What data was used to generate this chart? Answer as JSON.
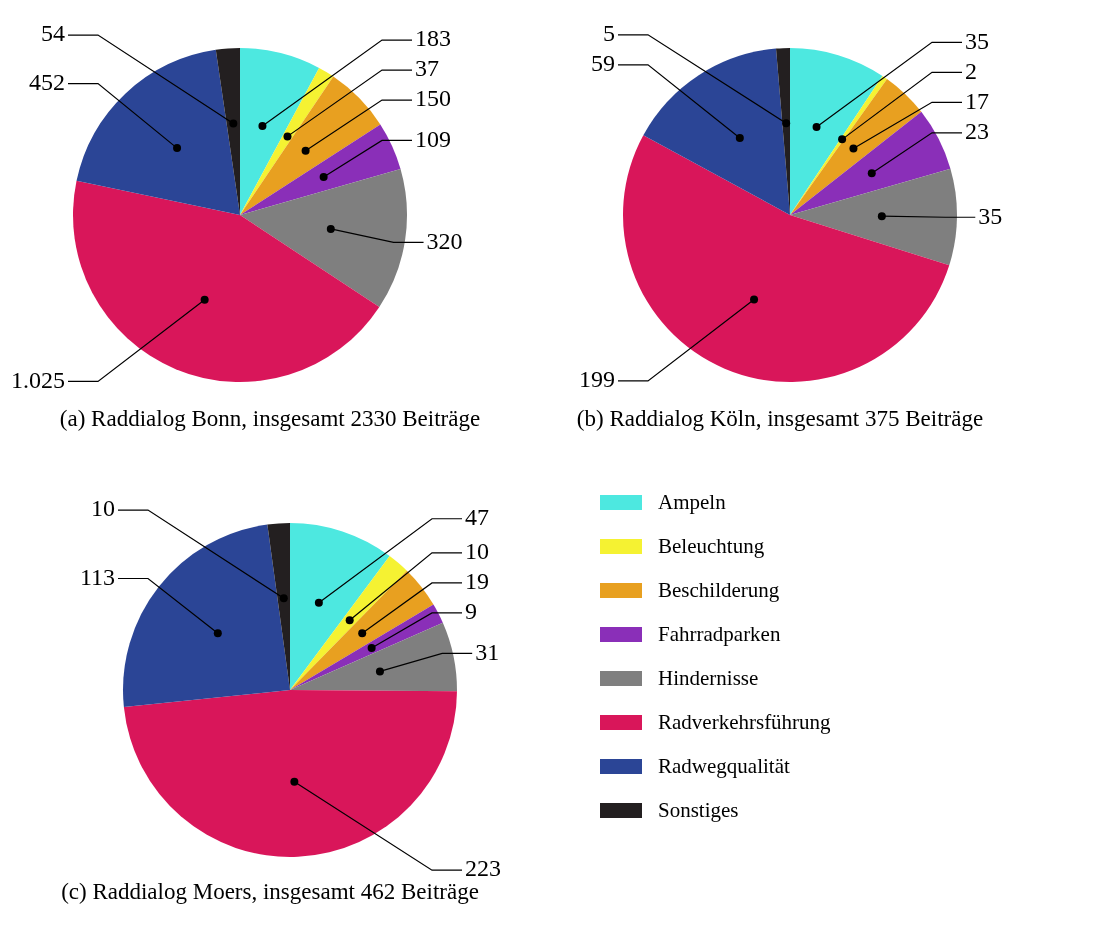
{
  "chart_data": [
    {
      "type": "pie",
      "title": "(a) Raddialog Bonn, insgesamt 2330 Beiträge",
      "categories": [
        null,
        null,
        null,
        null,
        null,
        null,
        null,
        null
      ],
      "values": [
        183,
        37,
        150,
        109,
        320,
        1025,
        452,
        54
      ],
      "value_labels": [
        "183",
        "37",
        "150",
        "109",
        "320",
        "1.025",
        "452",
        "54"
      ],
      "colors": [
        "#4de8e0",
        "#f5f232",
        "#e8a020",
        "#8a2fb8",
        "#7f7f7f",
        "#d9165a",
        "#2b4596",
        "#231f20"
      ]
    },
    {
      "type": "pie",
      "title": "(b) Raddialog Köln, insgesamt 375 Beiträge",
      "categories": [
        null,
        null,
        null,
        null,
        null,
        null,
        null,
        null
      ],
      "values": [
        35,
        2,
        17,
        23,
        35,
        199,
        59,
        5
      ],
      "data_labels": true,
      "colors": [
        "#4de8e0",
        "#f5f232",
        "#e8a020",
        "#8a2fb8",
        "#7f7f7f",
        "#d9165a",
        "#2b4596",
        "#231f20"
      ]
    },
    {
      "type": "pie",
      "title": "(c) Raddialog Moers, insgesamt 462 Beiträge",
      "categories": [
        "Ampeln",
        "Beleuchtung",
        "Beschilderung",
        "Fahrradparken",
        "Hindernisse",
        "Radverkehrsführung",
        "Radwegqualität",
        "Sonstiges"
      ],
      "values": [
        47,
        10,
        19,
        9,
        31,
        223,
        113,
        10
      ],
      "data_labels": true,
      "legend": "right",
      "colors": [
        "#4de8e0",
        "#f5f232",
        "#e8a020",
        "#8a2fb8",
        "#7f7f7f",
        "#d9165a",
        "#2b4596",
        "#231f20"
      ]
    }
  ]
}
